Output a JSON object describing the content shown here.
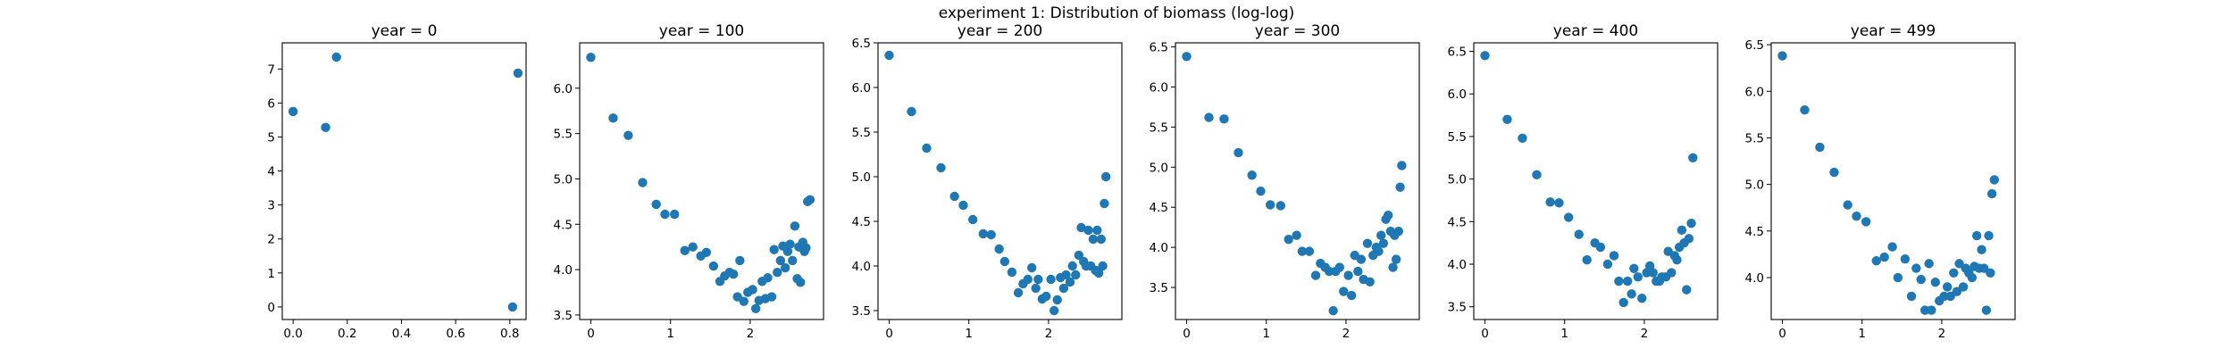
{
  "figure": {
    "title": "experiment 1: Distribution of biomass (log-log)"
  },
  "chart_data": [
    {
      "type": "scatter",
      "title": "year = 0",
      "xlim": [
        -0.04,
        0.86
      ],
      "ylim": [
        -0.37,
        7.77
      ],
      "xticks": [
        0.0,
        0.2,
        0.4,
        0.6,
        0.8
      ],
      "xtick_labels": [
        "0.0",
        "0.2",
        "0.4",
        "0.6",
        "0.8"
      ],
      "yticks": [
        0,
        1,
        2,
        3,
        4,
        5,
        6,
        7
      ],
      "ytick_labels": [
        "0",
        "1",
        "2",
        "3",
        "4",
        "5",
        "6",
        "7"
      ],
      "points": [
        {
          "x": 0.0,
          "y": 5.75
        },
        {
          "x": 0.12,
          "y": 5.28
        },
        {
          "x": 0.16,
          "y": 7.35
        },
        {
          "x": 0.81,
          "y": 0.0
        },
        {
          "x": 0.83,
          "y": 6.88
        }
      ]
    },
    {
      "type": "scatter",
      "title": "year = 100",
      "xlim": [
        -0.14,
        2.92
      ],
      "ylim": [
        3.45,
        6.5
      ],
      "xticks": [
        0,
        1,
        2
      ],
      "xtick_labels": [
        "0",
        "1",
        "2"
      ],
      "yticks": [
        3.5,
        4.0,
        4.5,
        5.0,
        5.5,
        6.0
      ],
      "ytick_labels": [
        "3.5",
        "4.0",
        "4.5",
        "5.0",
        "5.5",
        "6.0"
      ],
      "points": [
        {
          "x": 0.0,
          "y": 6.34
        },
        {
          "x": 0.28,
          "y": 5.67
        },
        {
          "x": 0.47,
          "y": 5.48
        },
        {
          "x": 0.65,
          "y": 4.96
        },
        {
          "x": 0.82,
          "y": 4.72
        },
        {
          "x": 0.93,
          "y": 4.61
        },
        {
          "x": 1.05,
          "y": 4.61
        },
        {
          "x": 1.18,
          "y": 4.21
        },
        {
          "x": 1.28,
          "y": 4.25
        },
        {
          "x": 1.38,
          "y": 4.15
        },
        {
          "x": 1.45,
          "y": 4.19
        },
        {
          "x": 1.54,
          "y": 4.04
        },
        {
          "x": 1.62,
          "y": 3.87
        },
        {
          "x": 1.68,
          "y": 3.93
        },
        {
          "x": 1.74,
          "y": 3.97
        },
        {
          "x": 1.79,
          "y": 3.95
        },
        {
          "x": 1.84,
          "y": 3.7
        },
        {
          "x": 1.87,
          "y": 4.1
        },
        {
          "x": 1.92,
          "y": 3.65
        },
        {
          "x": 1.97,
          "y": 3.75
        },
        {
          "x": 2.03,
          "y": 3.78
        },
        {
          "x": 2.07,
          "y": 3.57
        },
        {
          "x": 2.11,
          "y": 3.66
        },
        {
          "x": 2.15,
          "y": 3.87
        },
        {
          "x": 2.19,
          "y": 3.68
        },
        {
          "x": 2.22,
          "y": 3.91
        },
        {
          "x": 2.27,
          "y": 3.7
        },
        {
          "x": 2.3,
          "y": 4.22
        },
        {
          "x": 2.34,
          "y": 3.97
        },
        {
          "x": 2.38,
          "y": 4.1
        },
        {
          "x": 2.41,
          "y": 4.26
        },
        {
          "x": 2.44,
          "y": 4.02
        },
        {
          "x": 2.47,
          "y": 4.2
        },
        {
          "x": 2.5,
          "y": 4.28
        },
        {
          "x": 2.53,
          "y": 4.1
        },
        {
          "x": 2.56,
          "y": 4.48
        },
        {
          "x": 2.59,
          "y": 3.9
        },
        {
          "x": 2.61,
          "y": 4.25
        },
        {
          "x": 2.63,
          "y": 3.86
        },
        {
          "x": 2.66,
          "y": 4.3
        },
        {
          "x": 2.68,
          "y": 4.2
        },
        {
          "x": 2.7,
          "y": 4.24
        },
        {
          "x": 2.72,
          "y": 4.75
        },
        {
          "x": 2.75,
          "y": 4.77
        }
      ]
    },
    {
      "type": "scatter",
      "title": "year = 200",
      "xlim": [
        -0.14,
        2.92
      ],
      "ylim": [
        3.4,
        6.5
      ],
      "xticks": [
        0,
        1,
        2
      ],
      "xtick_labels": [
        "0",
        "1",
        "2"
      ],
      "yticks": [
        3.5,
        4.0,
        4.5,
        5.0,
        5.5,
        6.0,
        6.5
      ],
      "ytick_labels": [
        "3.5",
        "4.0",
        "4.5",
        "5.0",
        "5.5",
        "6.0",
        "6.5"
      ],
      "points": [
        {
          "x": 0.0,
          "y": 6.36
        },
        {
          "x": 0.28,
          "y": 5.73
        },
        {
          "x": 0.47,
          "y": 5.32
        },
        {
          "x": 0.65,
          "y": 5.1
        },
        {
          "x": 0.82,
          "y": 4.78
        },
        {
          "x": 0.93,
          "y": 4.68
        },
        {
          "x": 1.05,
          "y": 4.52
        },
        {
          "x": 1.18,
          "y": 4.36
        },
        {
          "x": 1.28,
          "y": 4.35
        },
        {
          "x": 1.38,
          "y": 4.19
        },
        {
          "x": 1.45,
          "y": 4.05
        },
        {
          "x": 1.54,
          "y": 3.93
        },
        {
          "x": 1.62,
          "y": 3.7
        },
        {
          "x": 1.68,
          "y": 3.8
        },
        {
          "x": 1.74,
          "y": 3.85
        },
        {
          "x": 1.79,
          "y": 3.98
        },
        {
          "x": 1.84,
          "y": 3.75
        },
        {
          "x": 1.87,
          "y": 3.85
        },
        {
          "x": 1.92,
          "y": 3.63
        },
        {
          "x": 1.97,
          "y": 3.66
        },
        {
          "x": 2.03,
          "y": 3.85
        },
        {
          "x": 2.07,
          "y": 3.5
        },
        {
          "x": 2.11,
          "y": 3.62
        },
        {
          "x": 2.15,
          "y": 3.87
        },
        {
          "x": 2.19,
          "y": 3.75
        },
        {
          "x": 2.22,
          "y": 3.9
        },
        {
          "x": 2.27,
          "y": 3.82
        },
        {
          "x": 2.3,
          "y": 4.0
        },
        {
          "x": 2.34,
          "y": 3.9
        },
        {
          "x": 2.38,
          "y": 4.12
        },
        {
          "x": 2.41,
          "y": 4.43
        },
        {
          "x": 2.44,
          "y": 4.05
        },
        {
          "x": 2.47,
          "y": 4.0
        },
        {
          "x": 2.5,
          "y": 4.4
        },
        {
          "x": 2.53,
          "y": 4.0
        },
        {
          "x": 2.56,
          "y": 4.3
        },
        {
          "x": 2.59,
          "y": 3.95
        },
        {
          "x": 2.61,
          "y": 4.4
        },
        {
          "x": 2.63,
          "y": 3.92
        },
        {
          "x": 2.66,
          "y": 4.3
        },
        {
          "x": 2.68,
          "y": 4.0
        },
        {
          "x": 2.7,
          "y": 4.7
        },
        {
          "x": 2.72,
          "y": 5.0
        }
      ]
    },
    {
      "type": "scatter",
      "title": "year = 300",
      "xlim": [
        -0.14,
        2.92
      ],
      "ylim": [
        3.1,
        6.55
      ],
      "xticks": [
        0,
        1,
        2
      ],
      "xtick_labels": [
        "0",
        "1",
        "2"
      ],
      "yticks": [
        3.5,
        4.0,
        4.5,
        5.0,
        5.5,
        6.0,
        6.5
      ],
      "ytick_labels": [
        "3.5",
        "4.0",
        "4.5",
        "5.0",
        "5.5",
        "6.0",
        "6.5"
      ],
      "points": [
        {
          "x": 0.0,
          "y": 6.38
        },
        {
          "x": 0.28,
          "y": 5.62
        },
        {
          "x": 0.47,
          "y": 5.6
        },
        {
          "x": 0.65,
          "y": 5.18
        },
        {
          "x": 0.82,
          "y": 4.9
        },
        {
          "x": 0.93,
          "y": 4.7
        },
        {
          "x": 1.05,
          "y": 4.53
        },
        {
          "x": 1.18,
          "y": 4.52
        },
        {
          "x": 1.28,
          "y": 4.1
        },
        {
          "x": 1.38,
          "y": 4.15
        },
        {
          "x": 1.45,
          "y": 3.95
        },
        {
          "x": 1.54,
          "y": 3.95
        },
        {
          "x": 1.62,
          "y": 3.65
        },
        {
          "x": 1.68,
          "y": 3.8
        },
        {
          "x": 1.74,
          "y": 3.75
        },
        {
          "x": 1.79,
          "y": 3.7
        },
        {
          "x": 1.84,
          "y": 3.21
        },
        {
          "x": 1.87,
          "y": 3.7
        },
        {
          "x": 1.92,
          "y": 3.75
        },
        {
          "x": 1.97,
          "y": 3.45
        },
        {
          "x": 2.03,
          "y": 3.65
        },
        {
          "x": 2.07,
          "y": 3.4
        },
        {
          "x": 2.11,
          "y": 3.9
        },
        {
          "x": 2.15,
          "y": 3.7
        },
        {
          "x": 2.19,
          "y": 3.85
        },
        {
          "x": 2.22,
          "y": 3.6
        },
        {
          "x": 2.27,
          "y": 4.05
        },
        {
          "x": 2.3,
          "y": 3.57
        },
        {
          "x": 2.34,
          "y": 3.9
        },
        {
          "x": 2.38,
          "y": 4.0
        },
        {
          "x": 2.41,
          "y": 3.95
        },
        {
          "x": 2.44,
          "y": 4.15
        },
        {
          "x": 2.47,
          "y": 4.05
        },
        {
          "x": 2.5,
          "y": 4.35
        },
        {
          "x": 2.53,
          "y": 4.4
        },
        {
          "x": 2.56,
          "y": 4.2
        },
        {
          "x": 2.59,
          "y": 3.75
        },
        {
          "x": 2.61,
          "y": 4.15
        },
        {
          "x": 2.63,
          "y": 3.85
        },
        {
          "x": 2.66,
          "y": 4.2
        },
        {
          "x": 2.68,
          "y": 4.75
        },
        {
          "x": 2.7,
          "y": 5.02
        }
      ]
    },
    {
      "type": "scatter",
      "title": "year = 400",
      "xlim": [
        -0.14,
        2.92
      ],
      "ylim": [
        3.35,
        6.6
      ],
      "xticks": [
        0,
        1,
        2
      ],
      "xtick_labels": [
        "0",
        "1",
        "2"
      ],
      "yticks": [
        3.5,
        4.0,
        4.5,
        5.0,
        5.5,
        6.0,
        6.5
      ],
      "ytick_labels": [
        "3.5",
        "4.0",
        "4.5",
        "5.0",
        "5.5",
        "6.0",
        "6.5"
      ],
      "points": [
        {
          "x": 0.0,
          "y": 6.45
        },
        {
          "x": 0.28,
          "y": 5.7
        },
        {
          "x": 0.47,
          "y": 5.48
        },
        {
          "x": 0.65,
          "y": 5.05
        },
        {
          "x": 0.82,
          "y": 4.73
        },
        {
          "x": 0.93,
          "y": 4.72
        },
        {
          "x": 1.05,
          "y": 4.55
        },
        {
          "x": 1.18,
          "y": 4.35
        },
        {
          "x": 1.28,
          "y": 4.05
        },
        {
          "x": 1.38,
          "y": 4.25
        },
        {
          "x": 1.45,
          "y": 4.2
        },
        {
          "x": 1.54,
          "y": 4.0
        },
        {
          "x": 1.62,
          "y": 4.1
        },
        {
          "x": 1.68,
          "y": 3.8
        },
        {
          "x": 1.74,
          "y": 3.55
        },
        {
          "x": 1.79,
          "y": 3.8
        },
        {
          "x": 1.84,
          "y": 3.65
        },
        {
          "x": 1.87,
          "y": 3.95
        },
        {
          "x": 1.92,
          "y": 3.85
        },
        {
          "x": 1.97,
          "y": 3.6
        },
        {
          "x": 2.03,
          "y": 3.9
        },
        {
          "x": 2.07,
          "y": 3.98
        },
        {
          "x": 2.11,
          "y": 3.9
        },
        {
          "x": 2.15,
          "y": 3.8
        },
        {
          "x": 2.19,
          "y": 3.8
        },
        {
          "x": 2.22,
          "y": 3.85
        },
        {
          "x": 2.27,
          "y": 3.85
        },
        {
          "x": 2.3,
          "y": 4.15
        },
        {
          "x": 2.34,
          "y": 3.9
        },
        {
          "x": 2.38,
          "y": 4.1
        },
        {
          "x": 2.41,
          "y": 4.05
        },
        {
          "x": 2.44,
          "y": 4.2
        },
        {
          "x": 2.47,
          "y": 4.4
        },
        {
          "x": 2.5,
          "y": 4.25
        },
        {
          "x": 2.53,
          "y": 3.7
        },
        {
          "x": 2.56,
          "y": 4.3
        },
        {
          "x": 2.59,
          "y": 4.48
        },
        {
          "x": 2.61,
          "y": 5.25
        }
      ]
    },
    {
      "type": "scatter",
      "title": "year = 499",
      "xlim": [
        -0.14,
        2.92
      ],
      "ylim": [
        3.55,
        6.52
      ],
      "xticks": [
        0,
        1,
        2
      ],
      "xtick_labels": [
        "0",
        "1",
        "2"
      ],
      "yticks": [
        4.0,
        4.5,
        5.0,
        5.5,
        6.0,
        6.5
      ],
      "ytick_labels": [
        "4.0",
        "4.5",
        "5.0",
        "5.5",
        "6.0",
        "6.5"
      ],
      "points": [
        {
          "x": 0.0,
          "y": 6.38
        },
        {
          "x": 0.28,
          "y": 5.8
        },
        {
          "x": 0.47,
          "y": 5.4
        },
        {
          "x": 0.65,
          "y": 5.13
        },
        {
          "x": 0.82,
          "y": 4.78
        },
        {
          "x": 0.93,
          "y": 4.66
        },
        {
          "x": 1.05,
          "y": 4.6
        },
        {
          "x": 1.18,
          "y": 4.18
        },
        {
          "x": 1.28,
          "y": 4.22
        },
        {
          "x": 1.38,
          "y": 4.33
        },
        {
          "x": 1.45,
          "y": 4.0
        },
        {
          "x": 1.54,
          "y": 4.2
        },
        {
          "x": 1.62,
          "y": 3.8
        },
        {
          "x": 1.68,
          "y": 4.1
        },
        {
          "x": 1.74,
          "y": 3.98
        },
        {
          "x": 1.79,
          "y": 3.65
        },
        {
          "x": 1.84,
          "y": 4.15
        },
        {
          "x": 1.87,
          "y": 3.65
        },
        {
          "x": 1.92,
          "y": 3.95
        },
        {
          "x": 1.97,
          "y": 3.75
        },
        {
          "x": 2.03,
          "y": 3.8
        },
        {
          "x": 2.07,
          "y": 3.9
        },
        {
          "x": 2.11,
          "y": 3.8
        },
        {
          "x": 2.15,
          "y": 4.05
        },
        {
          "x": 2.19,
          "y": 3.85
        },
        {
          "x": 2.22,
          "y": 4.15
        },
        {
          "x": 2.27,
          "y": 3.9
        },
        {
          "x": 2.3,
          "y": 4.1
        },
        {
          "x": 2.34,
          "y": 4.05
        },
        {
          "x": 2.38,
          "y": 4.0
        },
        {
          "x": 2.41,
          "y": 4.12
        },
        {
          "x": 2.44,
          "y": 4.45
        },
        {
          "x": 2.47,
          "y": 4.1
        },
        {
          "x": 2.5,
          "y": 4.3
        },
        {
          "x": 2.53,
          "y": 4.1
        },
        {
          "x": 2.56,
          "y": 3.65
        },
        {
          "x": 2.59,
          "y": 4.45
        },
        {
          "x": 2.61,
          "y": 4.05
        },
        {
          "x": 2.63,
          "y": 4.9
        },
        {
          "x": 2.66,
          "y": 5.05
        }
      ]
    }
  ]
}
